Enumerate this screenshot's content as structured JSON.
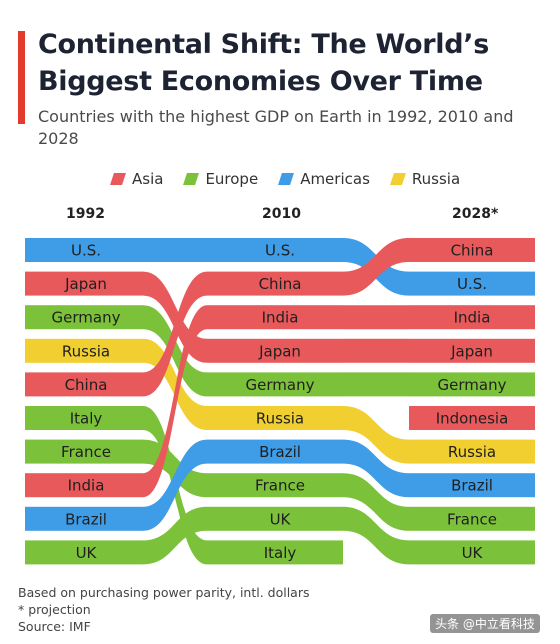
{
  "title": "Continental Shift: The World’s Biggest Economies Over Time",
  "subtitle": "Countries with the highest GDP on Earth in 1992, 2010 and 2028",
  "footer": {
    "note1": "Based on purchasing power parity, intl. dollars",
    "note2": "* projection",
    "source": "Source: IMF"
  },
  "watermark": "头条 @中立看科技",
  "colors": {
    "Asia": "#e8595b",
    "Europe": "#7cc13a",
    "Americas": "#3f9ce6",
    "Russia": "#f2cf30"
  },
  "chart_data": {
    "type": "bump",
    "years": [
      "1992",
      "2010",
      "2028*"
    ],
    "legend": [
      "Asia",
      "Europe",
      "Americas",
      "Russia"
    ],
    "rankings": {
      "1992": [
        "U.S.",
        "Japan",
        "Germany",
        "Russia",
        "China",
        "Italy",
        "France",
        "India",
        "Brazil",
        "UK"
      ],
      "2010": [
        "U.S.",
        "China",
        "India",
        "Japan",
        "Germany",
        "Russia",
        "Brazil",
        "France",
        "UK",
        "Italy"
      ],
      "2028*": [
        "China",
        "U.S.",
        "India",
        "Japan",
        "Germany",
        "Indonesia",
        "Russia",
        "Brazil",
        "France",
        "UK"
      ]
    },
    "regions": {
      "U.S.": "Americas",
      "Japan": "Asia",
      "Germany": "Europe",
      "Russia": "Russia",
      "China": "Asia",
      "Italy": "Europe",
      "France": "Europe",
      "India": "Asia",
      "Brazil": "Americas",
      "UK": "Europe",
      "Indonesia": "Asia"
    }
  }
}
